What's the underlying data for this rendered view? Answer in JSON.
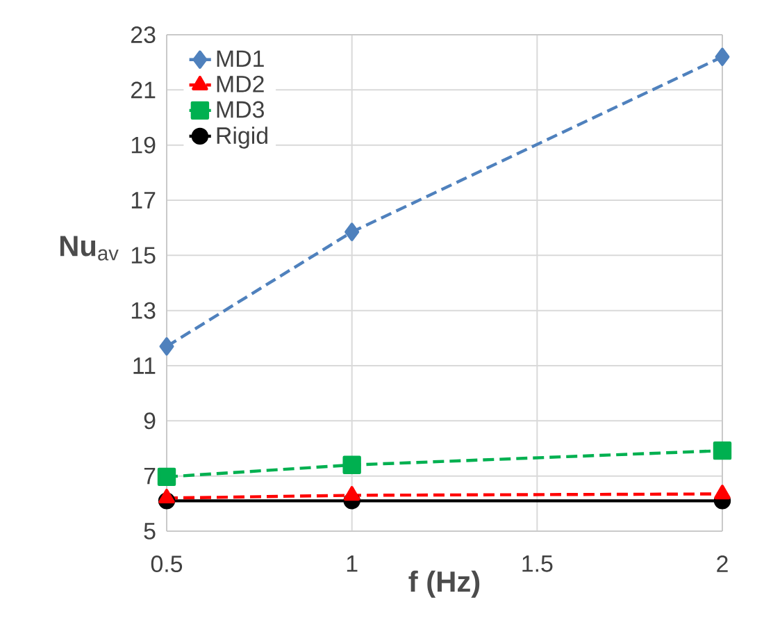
{
  "chart_data": {
    "type": "line",
    "xlabel": "f (Hz)",
    "ylabel": "**Nu**$_{av}$",
    "x": [
      0.5,
      1,
      2
    ],
    "series": [
      {
        "name": "MD1",
        "color": "#4f81bd",
        "values": [
          11.7,
          15.85,
          22.2
        ],
        "marker": "diamond",
        "line_style": "dashed"
      },
      {
        "name": "MD2",
        "color": "#ff0000",
        "values": [
          6.2,
          6.3,
          6.35
        ],
        "marker": "triangle",
        "line_style": "dashed"
      },
      {
        "name": "MD3",
        "color": "#00b050",
        "values": [
          6.97,
          7.4,
          7.92
        ],
        "marker": "square",
        "line_style": "dashed"
      },
      {
        "name": "Rigid",
        "color": "#000000",
        "values": [
          6.1,
          6.1,
          6.1
        ],
        "marker": "circle",
        "line_style": "solid"
      }
    ],
    "xlim": [
      0.5,
      2
    ],
    "xticks": [
      0.5,
      1,
      1.5,
      2
    ],
    "ylim": [
      5,
      23
    ],
    "yticks": [
      5,
      7,
      9,
      11,
      13,
      15,
      17,
      19,
      21,
      23
    ],
    "grid": true,
    "legend": "top left"
  }
}
